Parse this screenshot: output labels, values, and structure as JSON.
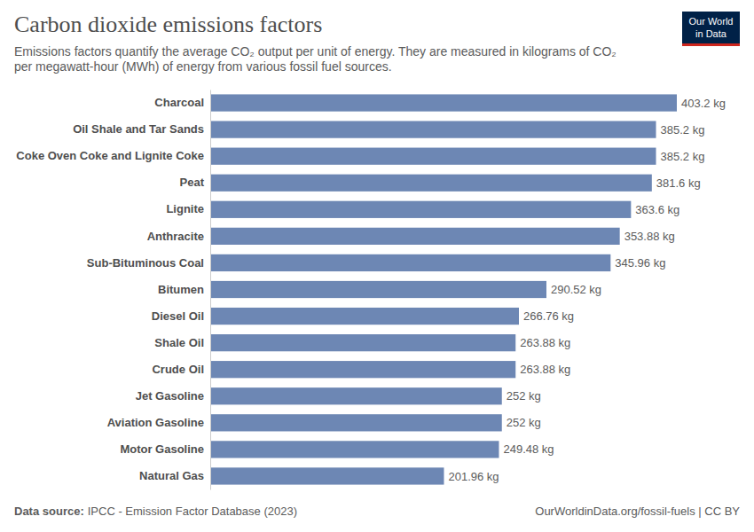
{
  "chart_data": {
    "type": "bar",
    "orientation": "horizontal",
    "title": "Carbon dioxide emissions factors",
    "subtitle": [
      "Emissions factors quantify the average CO₂ output per unit of energy. They are measured in kilograms of CO₂",
      "per megawatt-hour (MWh) of energy from various fossil fuel sources."
    ],
    "logo": [
      "Our World",
      "in Data"
    ],
    "source_label": "Data source:",
    "source": "IPCC - Emission Factor Database (2023)",
    "credit": "OurWorldinData.org/fossil-fuels | CC BY",
    "categories": [
      "Charcoal",
      "Oil Shale and Tar Sands",
      "Coke Oven Coke and Lignite Coke",
      "Peat",
      "Lignite",
      "Anthracite",
      "Sub-Bituminous Coal",
      "Bitumen",
      "Diesel Oil",
      "Shale Oil",
      "Crude Oil",
      "Jet Gasoline",
      "Aviation Gasoline",
      "Motor Gasoline",
      "Natural Gas"
    ],
    "values": [
      403.2,
      385.2,
      385.2,
      381.6,
      363.6,
      353.88,
      345.96,
      290.52,
      266.76,
      263.88,
      263.88,
      252,
      252,
      249.48,
      201.96
    ],
    "value_labels": [
      "403.2 kg",
      "385.2 kg",
      "385.2 kg",
      "381.6 kg",
      "363.6 kg",
      "353.88 kg",
      "345.96 kg",
      "290.52 kg",
      "266.76 kg",
      "263.88 kg",
      "263.88 kg",
      "252 kg",
      "252 kg",
      "249.48 kg",
      "201.96 kg"
    ],
    "color": "#6d87b4",
    "xlim": [
      0,
      403.2
    ],
    "data_labels": true,
    "tick_labels": "y",
    "grid": false
  }
}
